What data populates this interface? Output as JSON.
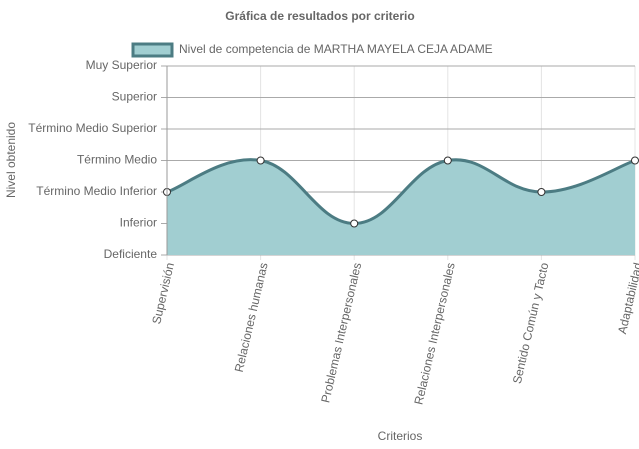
{
  "chart_data": {
    "type": "area",
    "title": "Gráfica de resultados por criterio",
    "x_label": "Criterios",
    "y_label": "Nivel obtenido",
    "categories": [
      "Supervisión",
      "Relaciones humanas",
      "Problemas Interpersonales",
      "Relaciones Interpersonales",
      "Sentido Común y Tacto",
      "Adaptabilidad"
    ],
    "series": [
      {
        "name": "Nivel de competencia de MARTHA MAYELA CEJA ADAME",
        "color": "#4c7c83",
        "fill": "#a1ced1",
        "values": [
          3,
          4,
          2,
          4,
          3,
          4
        ]
      }
    ],
    "ylim": [
      1,
      7
    ],
    "yticks": [
      {
        "value": 1,
        "label": "Deficiente"
      },
      {
        "value": 2,
        "label": "Inferior"
      },
      {
        "value": 3,
        "label": "Término Medio Inferior"
      },
      {
        "value": 4,
        "label": "Término Medio"
      },
      {
        "value": 5,
        "label": "Término Medio Superior"
      },
      {
        "value": 6,
        "label": "Superior"
      },
      {
        "value": 7,
        "label": "Muy Superior"
      }
    ],
    "grid": true
  }
}
